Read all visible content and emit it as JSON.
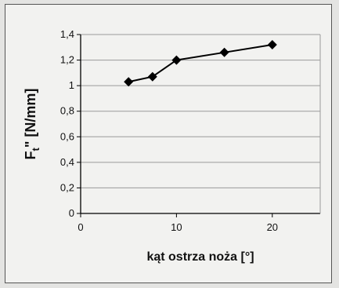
{
  "chart_data": {
    "type": "line",
    "title": "",
    "xlabel": "kąt ostrza noża [°]",
    "ylabel": "Ft\" [N/mm]",
    "ylabel_main": "F",
    "ylabel_sub": "t",
    "ylabel_rest": "\" [N/mm]",
    "xlim": [
      0,
      25
    ],
    "ylim": [
      0,
      1.4
    ],
    "x_ticks": [
      0,
      10,
      20
    ],
    "x_tick_labels": [
      "0",
      "10",
      "20"
    ],
    "y_ticks": [
      0,
      0.2,
      0.4,
      0.6,
      0.8,
      1.0,
      1.2,
      1.4
    ],
    "y_tick_labels": [
      "0",
      "0,2",
      "0,4",
      "0,6",
      "0,8",
      "1",
      "1,2",
      "1,4"
    ],
    "grid": "horizontal",
    "legend": "none",
    "marker": "diamond",
    "series": [
      {
        "x": [
          5,
          7.5,
          10,
          15,
          20
        ],
        "y": [
          1.03,
          1.07,
          1.2,
          1.26,
          1.32
        ]
      }
    ],
    "colors": {
      "line": "#000000",
      "grid": "#9a9a9a",
      "axis": "#000000"
    }
  }
}
